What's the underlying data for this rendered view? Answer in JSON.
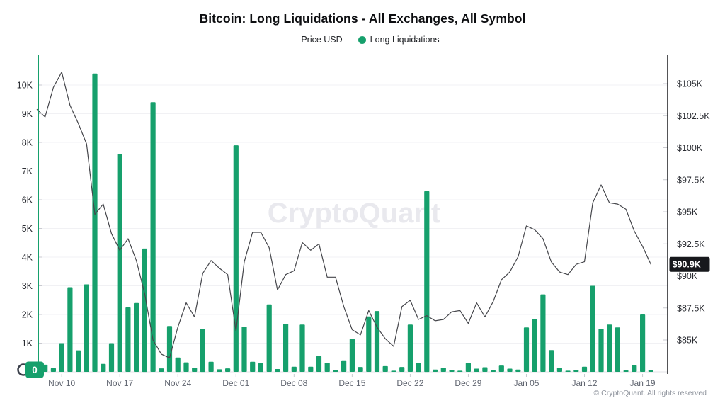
{
  "title": "Bitcoin: Long Liquidations - All Exchanges, All Symbol",
  "legend": {
    "price": "Price USD",
    "liquidations": "Long Liquidations"
  },
  "watermark": "CryptoQuant",
  "footer": "© CryptoQuant. All rights reserved",
  "colors": {
    "green": "#16a06c",
    "price_line": "#45464b",
    "grid": "#f1f1f4",
    "baseline": "#e3e3e7",
    "tick": "#c9cad0",
    "axis_right": "#1a1b1f",
    "label_dark": "#2b2d33",
    "label_gray": "#606570",
    "watermark": "#e9e9ee",
    "badge_price_bg": "#17181c",
    "badge_price_text": "#ffffff",
    "badge_zero_bg": "#16a06c",
    "badge_zero_text": "#ffffff"
  },
  "chart_data": {
    "type": "bar+line combo",
    "title": "Bitcoin: Long Liquidations - All Exchanges, All Symbol",
    "grid": "horizontal only",
    "legend_position": "top center",
    "x": [
      "Nov 07",
      "Nov 08",
      "Nov 09",
      "Nov 10",
      "Nov 11",
      "Nov 12",
      "Nov 13",
      "Nov 14",
      "Nov 15",
      "Nov 16",
      "Nov 17",
      "Nov 18",
      "Nov 19",
      "Nov 20",
      "Nov 21",
      "Nov 22",
      "Nov 23",
      "Nov 24",
      "Nov 25",
      "Nov 26",
      "Nov 27",
      "Nov 28",
      "Nov 29",
      "Nov 30",
      "Dec 01",
      "Dec 02",
      "Dec 03",
      "Dec 04",
      "Dec 05",
      "Dec 06",
      "Dec 07",
      "Dec 08",
      "Dec 09",
      "Dec 10",
      "Dec 11",
      "Dec 12",
      "Dec 13",
      "Dec 14",
      "Dec 15",
      "Dec 16",
      "Dec 17",
      "Dec 18",
      "Dec 19",
      "Dec 20",
      "Dec 21",
      "Dec 22",
      "Dec 23",
      "Dec 24",
      "Dec 25",
      "Dec 26",
      "Dec 27",
      "Dec 28",
      "Dec 29",
      "Dec 30",
      "Dec 31",
      "Jan 01",
      "Jan 02",
      "Jan 03",
      "Jan 04",
      "Jan 05",
      "Jan 06",
      "Jan 07",
      "Jan 08",
      "Jan 09",
      "Jan 10",
      "Jan 11",
      "Jan 12",
      "Jan 13",
      "Jan 14",
      "Jan 15",
      "Jan 16",
      "Jan 17",
      "Jan 18",
      "Jan 19",
      "Jan 20"
    ],
    "series": [
      {
        "name": "Long Liquidations",
        "type": "bar",
        "axis": "left",
        "color": "#16a06c",
        "values": [
          350,
          250,
          130,
          1000,
          2950,
          750,
          3050,
          10400,
          280,
          1000,
          7600,
          2250,
          2400,
          4300,
          9400,
          120,
          1600,
          500,
          330,
          140,
          1500,
          350,
          90,
          120,
          7900,
          1580,
          350,
          300,
          2350,
          100,
          1680,
          180,
          1650,
          180,
          550,
          320,
          70,
          400,
          1150,
          170,
          1930,
          2120,
          200,
          40,
          170,
          1650,
          300,
          6300,
          80,
          140,
          60,
          40,
          310,
          110,
          160,
          50,
          220,
          110,
          80,
          1550,
          1850,
          2700,
          760,
          140,
          40,
          60,
          180,
          3000,
          1500,
          1650,
          1550,
          50,
          230,
          2000,
          60
        ]
      },
      {
        "name": "Price USD",
        "type": "line",
        "axis": "right",
        "unit": "$K",
        "color": "#45464b",
        "values": [
          103.0,
          102.4,
          104.7,
          105.9,
          103.3,
          101.9,
          100.3,
          94.8,
          95.6,
          93.3,
          92.0,
          92.9,
          91.2,
          88.6,
          85.0,
          83.9,
          83.6,
          86.0,
          87.9,
          86.8,
          90.2,
          91.2,
          90.6,
          90.1,
          85.7,
          91.1,
          93.4,
          93.4,
          92.2,
          88.9,
          90.1,
          90.4,
          92.6,
          92.0,
          92.5,
          89.9,
          89.9,
          87.6,
          85.8,
          85.4,
          87.3,
          86.0,
          85.1,
          84.5,
          87.6,
          88.1,
          86.6,
          86.9,
          86.5,
          86.6,
          87.2,
          87.3,
          86.3,
          87.9,
          86.8,
          88.0,
          89.7,
          90.3,
          91.5,
          93.9,
          93.6,
          92.9,
          91.1,
          90.3,
          90.1,
          90.9,
          91.1,
          95.7,
          97.1,
          95.7,
          95.6,
          95.2,
          93.5,
          92.3,
          90.9
        ]
      }
    ],
    "left_axis": {
      "ticks": [
        {
          "t": "10K",
          "v": 10000
        },
        {
          "t": "9K",
          "v": 9000
        },
        {
          "t": "8K",
          "v": 8000
        },
        {
          "t": "7K",
          "v": 7000
        },
        {
          "t": "6K",
          "v": 6000
        },
        {
          "t": "5K",
          "v": 5000
        },
        {
          "t": "4K",
          "v": 4000
        },
        {
          "t": "3K",
          "v": 3000
        },
        {
          "t": "2K",
          "v": 2000
        },
        {
          "t": "1K",
          "v": 1000
        }
      ],
      "zero_badge": "0",
      "range": [
        0,
        11000
      ]
    },
    "right_axis": {
      "ticks": [
        {
          "t": "$105K",
          "v": 105
        },
        {
          "t": "$102.5K",
          "v": 102.5
        },
        {
          "t": "$100K",
          "v": 100
        },
        {
          "t": "$97.5K",
          "v": 97.5
        },
        {
          "t": "$95K",
          "v": 95
        },
        {
          "t": "$92.5K",
          "v": 92.5
        },
        {
          "t": "$90K",
          "v": 90
        },
        {
          "t": "$87.5K",
          "v": 87.5
        },
        {
          "t": "$85K",
          "v": 85
        }
      ],
      "current_badge": {
        "t": "$90.9K",
        "v": 90.9
      },
      "range_k": [
        82.5,
        107.3
      ]
    },
    "x_ticks": [
      {
        "t": "Nov 10",
        "i": 3
      },
      {
        "t": "Nov 17",
        "i": 10
      },
      {
        "t": "Nov 24",
        "i": 17
      },
      {
        "t": "Dec 01",
        "i": 24
      },
      {
        "t": "Dec 08",
        "i": 31
      },
      {
        "t": "Dec 15",
        "i": 38
      },
      {
        "t": "Dec 22",
        "i": 45
      },
      {
        "t": "Dec 29",
        "i": 52
      },
      {
        "t": "Jan 05",
        "i": 59
      },
      {
        "t": "Jan 12",
        "i": 66
      },
      {
        "t": "Jan 19",
        "i": 73
      }
    ]
  }
}
